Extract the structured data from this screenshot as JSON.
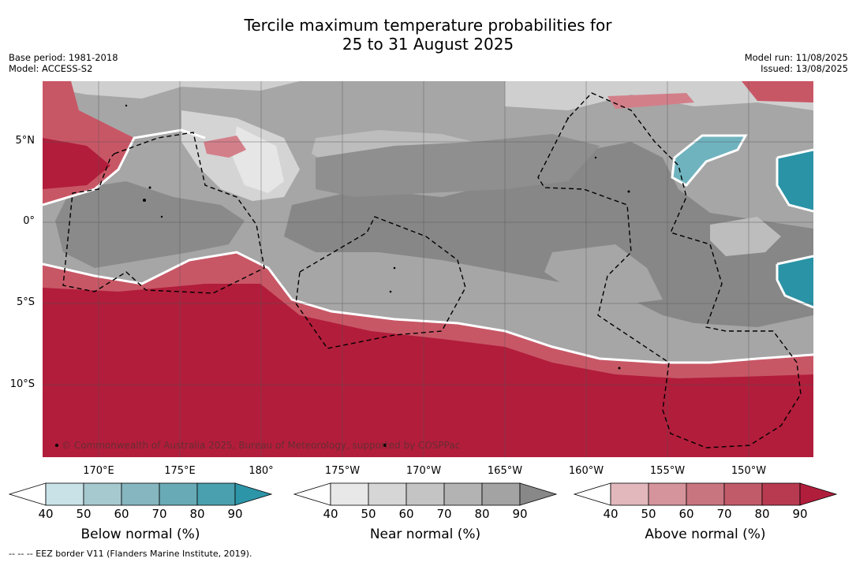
{
  "title": {
    "line1": "Tercile maximum temperature probabilities for",
    "line2": "25 to 31 August 2025"
  },
  "meta_left": {
    "base_period": "Base period: 1981-2018",
    "model": "Model: ACCESS-S2"
  },
  "meta_right": {
    "model_run": "Model run: 11/08/2025",
    "issued": "Issued: 13/08/2025"
  },
  "map": {
    "latitude_labels": [
      "5°N",
      "0°",
      "5°S",
      "10°S"
    ],
    "longitude_labels": [
      "170°E",
      "175°E",
      "180°",
      "175°W",
      "170°W",
      "165°W",
      "160°W",
      "155°W",
      "150°W"
    ],
    "copyright": "© Commonwealth of Australia 2025, Bureau of Meteorology, supported by COSPPac",
    "colors": {
      "near_50": "#d4d4d4",
      "near_60": "#bdbdbd",
      "near_70": "#a6a6a6",
      "near_90": "#878787",
      "above_60": "#d37f8a",
      "above_70": "#c85766",
      "above_90": "#b21d3b",
      "below_70": "#6fb3bf",
      "below_90": "#2a93a6"
    }
  },
  "colorbars": [
    {
      "label": "Below normal (%)",
      "ticks": [
        "40",
        "50",
        "60",
        "70",
        "80",
        "90"
      ],
      "colors": [
        "#ffffff",
        "#c8e2e8",
        "#a5c9cf",
        "#86b6c0",
        "#68aab5",
        "#4aa0ae",
        "#2d95a8"
      ]
    },
    {
      "label": "Near normal (%)",
      "ticks": [
        "40",
        "50",
        "60",
        "70",
        "80",
        "90"
      ],
      "colors": [
        "#ffffff",
        "#e8e8e8",
        "#d6d6d6",
        "#c4c4c4",
        "#b3b3b3",
        "#a3a3a3",
        "#888888"
      ]
    },
    {
      "label": "Above normal (%)",
      "ticks": [
        "40",
        "50",
        "60",
        "70",
        "80",
        "90"
      ],
      "colors": [
        "#ffffff",
        "#e2b8bd",
        "#d5939b",
        "#c97580",
        "#c25b69",
        "#b83a51",
        "#b01e3c"
      ]
    }
  ],
  "footnote": "--  --  -- EEZ border V11 (Flanders Marine Institute, 2019)."
}
